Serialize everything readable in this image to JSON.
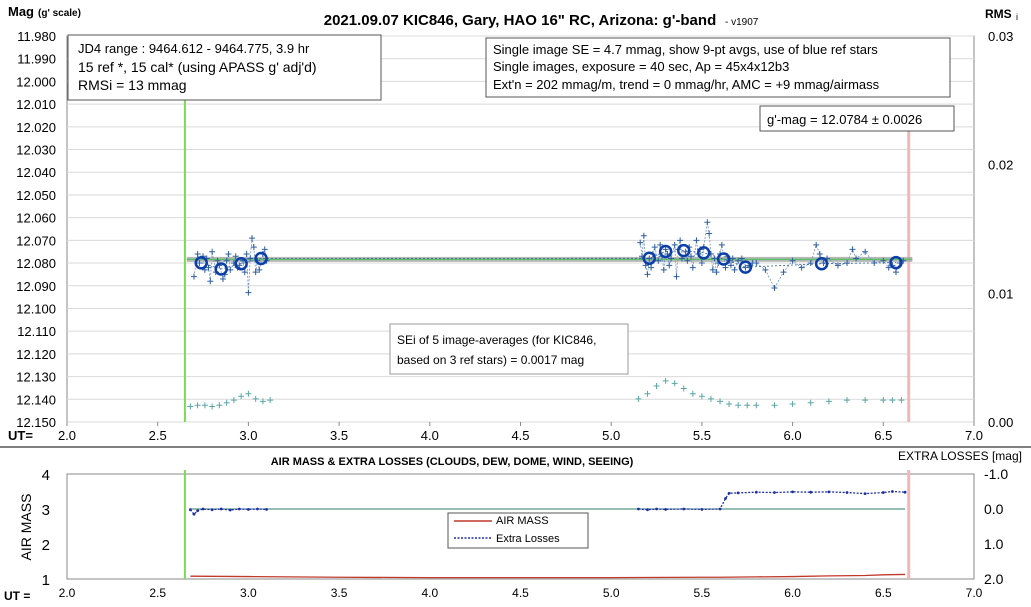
{
  "chart_data": [
    {
      "type": "scatter",
      "title": "2021.09.07 KIC846, Gary, HAO 16\" RC, Arizona: g'-band",
      "version": "- v1907",
      "ylabel": "Mag",
      "ylabel_unit": "(g' scale)",
      "xlabel": "UT=",
      "y2label": "RMS",
      "y2label_sub": "i",
      "xlim": [
        2.0,
        7.0
      ],
      "ylim": [
        11.98,
        12.15
      ],
      "y_reversed": true,
      "y2lim": [
        0.0,
        0.03
      ],
      "x_ticks": [
        "2.0",
        "2.5",
        "3.0",
        "3.5",
        "4.0",
        "4.5",
        "5.0",
        "5.5",
        "6.0",
        "6.5",
        "7.0"
      ],
      "y_ticks": [
        "11.980",
        "11.990",
        "12.000",
        "12.010",
        "12.020",
        "12.030",
        "12.040",
        "12.050",
        "12.060",
        "12.070",
        "12.080",
        "12.090",
        "12.100",
        "12.110",
        "12.120",
        "12.130",
        "12.140",
        "12.150"
      ],
      "y2_ticks": [
        "0.03",
        "0.02",
        "0.01",
        "0.00"
      ],
      "grid": "horizontal",
      "annotations": {
        "info_left": [
          "JD4 range : 9464.612 - 9464.775,  3.9  hr",
          "15 ref *, 15 cal* (using APASS g' adj'd)",
          "RMSi = 13 mmag"
        ],
        "info_right": [
          "Single image SE = 4.7 mmag, show  9-pt avgs, use of blue ref stars",
          "Single images, exposure = 40 sec, Ap = 45x4x12b3",
          "Ext'n = 202 mmag/m, trend = 0 mmag/hr, AMC = +9 mmag/airmass"
        ],
        "result": "g'-mag = 12.0784 ± 0.0026",
        "sei_note": [
          "SEi of 5 image-averages (for KIC846,",
          "based on 3 ref stars) = 0.0017 mag"
        ]
      },
      "start_line_x": 2.65,
      "end_line_x": 6.64,
      "fit_mag": 12.0784,
      "series": [
        {
          "kind": "image_averages",
          "x": [
            2.74,
            2.85,
            2.96,
            3.07,
            5.21,
            5.3,
            5.4,
            5.51,
            5.62,
            5.74,
            6.16,
            6.57
          ],
          "y": [
            12.0799,
            12.0826,
            12.0803,
            12.078,
            12.0779,
            12.0749,
            12.0745,
            12.0755,
            12.0782,
            12.0818,
            12.0803,
            12.0798
          ]
        },
        {
          "kind": "single_images",
          "x": [
            2.7,
            2.72,
            2.73,
            2.75,
            2.76,
            2.77,
            2.78,
            2.79,
            2.8,
            2.82,
            2.83,
            2.84,
            2.86,
            2.87,
            2.88,
            2.89,
            2.9,
            2.92,
            2.93,
            2.94,
            2.95,
            2.97,
            2.98,
            2.99,
            3.0,
            3.01,
            3.02,
            3.03,
            3.04,
            3.05,
            3.06,
            3.08,
            3.09,
            3.1,
            5.16,
            5.17,
            5.18,
            5.19,
            5.2,
            5.21,
            5.22,
            5.23,
            5.24,
            5.26,
            5.27,
            5.28,
            5.29,
            5.3,
            5.31,
            5.32,
            5.33,
            5.35,
            5.36,
            5.37,
            5.38,
            5.39,
            5.41,
            5.42,
            5.43,
            5.44,
            5.45,
            5.47,
            5.48,
            5.49,
            5.5,
            5.51,
            5.53,
            5.54,
            5.55,
            5.56,
            5.57,
            5.58,
            5.59,
            5.6,
            5.61,
            5.63,
            5.64,
            5.65,
            5.66,
            5.67,
            5.68,
            5.7,
            5.72,
            5.74,
            5.76,
            5.78,
            5.8,
            5.85,
            5.9,
            5.95,
            6.0,
            6.05,
            6.1,
            6.13,
            6.15,
            6.17,
            6.19,
            6.25,
            6.3,
            6.33,
            6.35,
            6.4,
            6.45,
            6.5,
            6.53,
            6.55,
            6.57,
            6.59,
            6.61
          ],
          "y": [
            12.086,
            12.076,
            12.08,
            12.077,
            12.083,
            12.078,
            12.082,
            12.088,
            12.075,
            12.084,
            12.079,
            12.081,
            12.087,
            12.085,
            12.079,
            12.076,
            12.083,
            12.08,
            12.077,
            12.082,
            12.081,
            12.079,
            12.084,
            12.076,
            12.093,
            12.078,
            12.069,
            12.073,
            12.084,
            12.079,
            12.083,
            12.076,
            12.074,
            12.079,
            12.071,
            12.077,
            12.068,
            12.081,
            12.085,
            12.078,
            12.082,
            12.076,
            12.073,
            12.079,
            12.072,
            12.077,
            12.083,
            12.074,
            12.076,
            12.081,
            12.078,
            12.072,
            12.086,
            12.074,
            12.07,
            12.078,
            12.075,
            12.079,
            12.073,
            12.077,
            12.082,
            12.07,
            12.076,
            12.074,
            12.08,
            12.073,
            12.062,
            12.067,
            12.076,
            12.083,
            12.078,
            12.084,
            12.08,
            12.076,
            12.072,
            12.082,
            12.077,
            12.079,
            12.081,
            12.078,
            12.083,
            12.079,
            12.078,
            12.082,
            12.081,
            12.08,
            12.08,
            12.083,
            12.091,
            12.084,
            12.079,
            12.082,
            12.08,
            12.072,
            12.076,
            12.08,
            12.078,
            12.081,
            12.08,
            12.074,
            12.078,
            12.075,
            12.08,
            12.079,
            12.082,
            12.081,
            12.084,
            12.08,
            12.079
          ]
        },
        {
          "kind": "rms_i",
          "x": [
            2.68,
            2.72,
            2.76,
            2.8,
            2.84,
            2.88,
            2.92,
            2.96,
            3.0,
            3.04,
            3.08,
            3.12,
            5.15,
            5.2,
            5.25,
            5.3,
            5.35,
            5.4,
            5.45,
            5.5,
            5.55,
            5.6,
            5.65,
            5.7,
            5.75,
            5.8,
            5.9,
            6.0,
            6.1,
            6.2,
            6.3,
            6.4,
            6.5,
            6.55,
            6.6
          ],
          "y": [
            0.0012,
            0.0013,
            0.0013,
            0.0012,
            0.0013,
            0.0015,
            0.0017,
            0.002,
            0.0022,
            0.0018,
            0.0016,
            0.0017,
            0.0018,
            0.0022,
            0.0028,
            0.0032,
            0.003,
            0.0026,
            0.0022,
            0.002,
            0.0018,
            0.0016,
            0.0014,
            0.0013,
            0.0013,
            0.0013,
            0.0013,
            0.0014,
            0.0015,
            0.0016,
            0.0017,
            0.0017,
            0.0017,
            0.0017,
            0.0017
          ]
        }
      ]
    },
    {
      "type": "line",
      "title": "AIR MASS & EXTRA LOSSES (CLOUDS, DEW, DOME, WIND, SEEING)",
      "ylabel": "AIR MASS",
      "xlabel": "UT =",
      "y2label": "EXTRA LOSSES [mag]",
      "xlim": [
        2.0,
        7.0
      ],
      "ylim": [
        1,
        4
      ],
      "y2lim": [
        2.0,
        -1.0
      ],
      "x_ticks": [
        "2.0",
        "2.5",
        "3.0",
        "3.5",
        "4.0",
        "4.5",
        "5.0",
        "5.5",
        "6.0",
        "6.5",
        "7.0"
      ],
      "y_ticks": [
        "1",
        "2",
        "3",
        "4"
      ],
      "y2_ticks": [
        "-1.0",
        "0.0",
        "1.0",
        "2.0"
      ],
      "legend_position": "center",
      "start_line_x": 2.65,
      "end_line_x": 6.64,
      "series": [
        {
          "name": "AIR MASS",
          "color": "#c0392b",
          "x": [
            2.68,
            3.0,
            3.5,
            4.0,
            4.5,
            5.0,
            5.5,
            5.6,
            5.8,
            6.0,
            6.2,
            6.4,
            6.5,
            6.62
          ],
          "y": [
            1.08,
            1.07,
            1.05,
            1.04,
            1.04,
            1.04,
            1.05,
            1.05,
            1.06,
            1.07,
            1.09,
            1.1,
            1.12,
            1.13
          ]
        },
        {
          "name": "Extra Losses",
          "color": "#1f2fa3",
          "x": [
            2.68,
            2.7,
            2.72,
            2.75,
            2.8,
            2.85,
            2.9,
            2.95,
            3.0,
            3.05,
            3.1,
            5.15,
            5.2,
            5.25,
            5.3,
            5.4,
            5.5,
            5.6,
            5.63,
            5.65,
            5.7,
            5.8,
            5.9,
            6.0,
            6.1,
            6.2,
            6.3,
            6.4,
            6.5,
            6.55,
            6.62
          ],
          "y": [
            0.02,
            0.15,
            0.05,
            0.0,
            0.02,
            0.0,
            0.03,
            0.0,
            0.01,
            0.0,
            0.01,
            0.0,
            0.02,
            0.0,
            0.01,
            0.0,
            0.01,
            0.0,
            -0.3,
            -0.45,
            -0.46,
            -0.48,
            -0.47,
            -0.49,
            -0.48,
            -0.49,
            -0.47,
            -0.44,
            -0.47,
            -0.5,
            -0.48
          ]
        }
      ]
    }
  ]
}
